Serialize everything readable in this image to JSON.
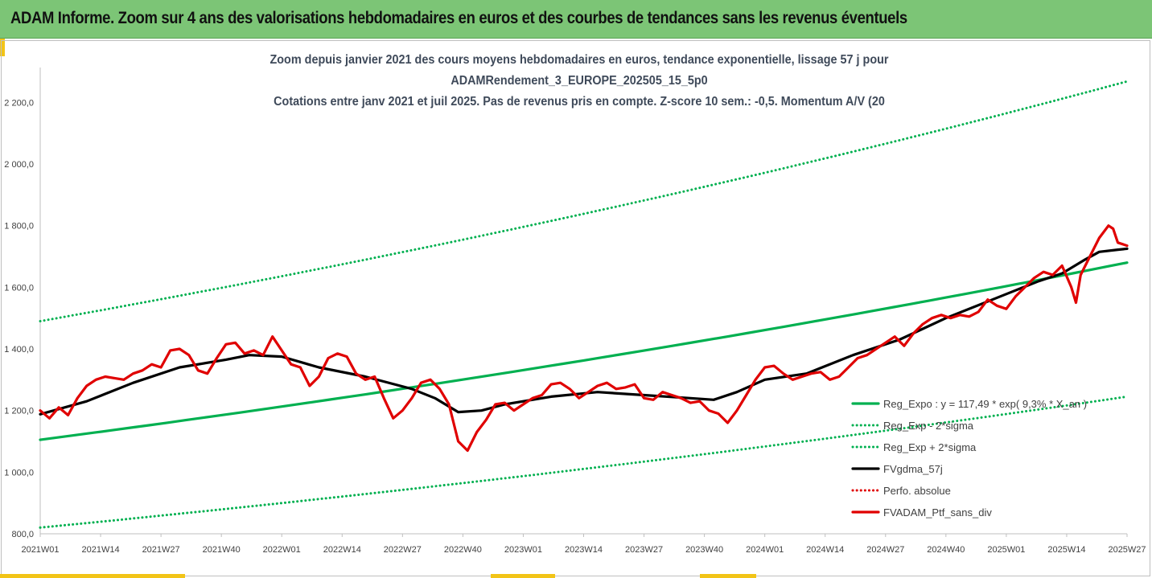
{
  "header": {
    "title": "ADAM Informe. Zoom sur 4 ans des valorisations hebdomadaires en euros et des courbes de tendances sans les revenus éventuels"
  },
  "chart_data": {
    "type": "line",
    "title_lines": [
      "Zoom depuis janvier 2021 des cours moyens hebdomadaires  en euros, tendance exponentielle, lissage 57 j pour",
      "ADAMRendement_3_EUROPE_202505_15_5p0",
      "Cotations entre janv 2021 et juil 2025. Pas de revenus pris en compte. Z-score 10 sem.: -0,5. Momentum A/V (20"
    ],
    "ylim": [
      800,
      2300
    ],
    "yticks": [
      "800,0",
      "1 000,0",
      "1 200,0",
      "1 400,0",
      "1 600,0",
      "1 800,0",
      "2 000,0",
      "2 200,0"
    ],
    "ytick_values": [
      800,
      1000,
      1200,
      1400,
      1600,
      1800,
      2000,
      2200
    ],
    "xlim": [
      0,
      234
    ],
    "xticks": [
      "2021W01",
      "2021W14",
      "2021W27",
      "2021W40",
      "2022W01",
      "2022W14",
      "2022W27",
      "2022W40",
      "2023W01",
      "2023W14",
      "2023W27",
      "2023W40",
      "2024W01",
      "2024W14",
      "2024W27",
      "2024W40",
      "2025W01",
      "2025W14",
      "2025W27"
    ],
    "xtick_values": [
      0,
      13,
      26,
      39,
      52,
      65,
      78,
      91,
      104,
      117,
      130,
      143,
      156,
      169,
      182,
      195,
      208,
      221,
      234
    ],
    "legend_position": "bottom-right",
    "series": [
      {
        "name": "Reg_Expo : y = 117,49 * exp( 9,3% * X_an )",
        "style": "solid",
        "color": "#00b050",
        "x": [
          0,
          234
        ],
        "y": [
          1105,
          1680
        ],
        "curve": "exponential"
      },
      {
        "name": "Reg_Exp - 2*sigma",
        "style": "dotted",
        "color": "#00b050",
        "x": [
          0,
          234
        ],
        "y": [
          820,
          1245
        ],
        "curve": "exponential"
      },
      {
        "name": "Reg_Exp + 2*sigma",
        "style": "dotted",
        "color": "#00b050",
        "x": [
          0,
          234
        ],
        "y": [
          1490,
          2268
        ],
        "curve": "exponential"
      },
      {
        "name": "FVgdma_57j",
        "style": "solid",
        "color": "#000000",
        "x": [
          0,
          10,
          20,
          30,
          40,
          45,
          52,
          60,
          70,
          80,
          85,
          90,
          95,
          100,
          110,
          120,
          130,
          140,
          145,
          150,
          156,
          165,
          175,
          185,
          195,
          205,
          210,
          215,
          220,
          225,
          228,
          232,
          234
        ],
        "y": [
          1188,
          1230,
          1290,
          1340,
          1365,
          1380,
          1375,
          1340,
          1310,
          1270,
          1240,
          1195,
          1200,
          1220,
          1245,
          1260,
          1250,
          1240,
          1235,
          1260,
          1300,
          1320,
          1380,
          1430,
          1500,
          1560,
          1590,
          1620,
          1645,
          1690,
          1715,
          1722,
          1725
        ]
      },
      {
        "name": "Perfo. absolue",
        "style": "dotted",
        "color": "#e00000",
        "x": [],
        "y": []
      },
      {
        "name": "FVADAM_Ptf_sans_div",
        "style": "solid",
        "color": "#e00000",
        "x": [
          0,
          2,
          4,
          6,
          8,
          10,
          12,
          14,
          16,
          18,
          20,
          22,
          24,
          26,
          28,
          30,
          32,
          34,
          36,
          38,
          40,
          42,
          44,
          46,
          48,
          50,
          52,
          54,
          56,
          58,
          60,
          62,
          64,
          66,
          68,
          70,
          72,
          74,
          76,
          78,
          80,
          82,
          84,
          86,
          88,
          90,
          92,
          94,
          96,
          98,
          100,
          102,
          104,
          106,
          108,
          110,
          112,
          114,
          116,
          118,
          120,
          122,
          124,
          126,
          128,
          130,
          132,
          134,
          136,
          138,
          140,
          142,
          144,
          146,
          148,
          150,
          152,
          154,
          156,
          158,
          160,
          162,
          164,
          166,
          168,
          170,
          172,
          174,
          176,
          178,
          180,
          182,
          184,
          186,
          188,
          190,
          192,
          194,
          196,
          198,
          200,
          202,
          204,
          206,
          208,
          210,
          212,
          214,
          216,
          218,
          220,
          222,
          223,
          224,
          226,
          228,
          230,
          231,
          232,
          234
        ],
        "y": [
          1200,
          1175,
          1210,
          1185,
          1240,
          1280,
          1300,
          1310,
          1305,
          1300,
          1320,
          1330,
          1350,
          1340,
          1395,
          1400,
          1380,
          1330,
          1320,
          1370,
          1415,
          1420,
          1385,
          1395,
          1380,
          1440,
          1395,
          1350,
          1340,
          1280,
          1310,
          1370,
          1385,
          1375,
          1320,
          1300,
          1310,
          1240,
          1175,
          1200,
          1240,
          1290,
          1300,
          1270,
          1220,
          1100,
          1070,
          1130,
          1170,
          1220,
          1225,
          1200,
          1220,
          1240,
          1250,
          1285,
          1290,
          1270,
          1240,
          1260,
          1280,
          1290,
          1270,
          1275,
          1285,
          1240,
          1235,
          1260,
          1250,
          1240,
          1225,
          1230,
          1200,
          1190,
          1160,
          1200,
          1250,
          1300,
          1340,
          1345,
          1320,
          1300,
          1310,
          1320,
          1325,
          1300,
          1310,
          1340,
          1370,
          1380,
          1400,
          1420,
          1440,
          1410,
          1450,
          1480,
          1500,
          1510,
          1500,
          1510,
          1505,
          1520,
          1560,
          1540,
          1530,
          1570,
          1600,
          1630,
          1650,
          1640,
          1670,
          1600,
          1550,
          1640,
          1700,
          1760,
          1800,
          1790,
          1745,
          1735
        ]
      }
    ]
  }
}
